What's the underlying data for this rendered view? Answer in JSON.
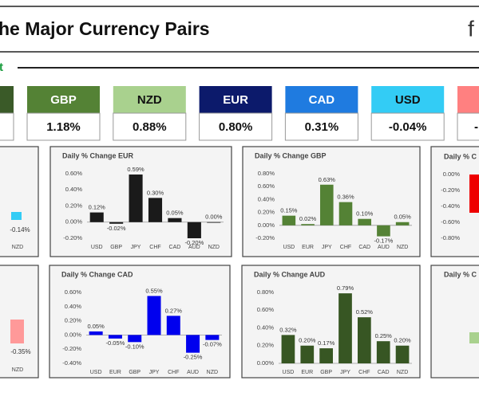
{
  "header": {
    "title": "he Major Currency Pairs",
    "logo": "f",
    "subtitle": "t"
  },
  "tiles": [
    {
      "currency": "GBP",
      "change": "1.18%",
      "color": "#548235"
    },
    {
      "currency": "NZD",
      "change": "0.88%",
      "color": "#a9d18e"
    },
    {
      "currency": "EUR",
      "change": "0.80%",
      "color": "#0c1a6b"
    },
    {
      "currency": "CAD",
      "change": "0.31%",
      "color": "#1f7be0"
    },
    {
      "currency": "USD",
      "change": "-0.04%",
      "color": "#33ccf5"
    }
  ],
  "partial_tile_value": "-",
  "chart_data": [
    {
      "type": "bar",
      "title": "Daily % Change EUR",
      "color": "#1a1a1a",
      "categories": [
        "USD",
        "GBP",
        "JPY",
        "CHF",
        "CAD",
        "AUD",
        "NZD"
      ],
      "values": [
        0.12,
        -0.02,
        0.59,
        0.3,
        0.05,
        -0.2,
        0.0
      ],
      "value_labels": [
        "0.12%",
        "-0.02%",
        "0.59%",
        "0.30%",
        "0.05%",
        "-0.20%",
        "0.00%"
      ],
      "ylim": [
        -0.2,
        0.6
      ],
      "yticks": [
        {
          "value": -0.2,
          "label": "-0.20%"
        },
        {
          "value": 0,
          "label": "0.00%"
        },
        {
          "value": 0.2,
          "label": "0.20%"
        },
        {
          "value": 0.4,
          "label": "0.40%"
        },
        {
          "value": 0.6,
          "label": "0.60%"
        }
      ]
    },
    {
      "type": "bar",
      "title": "Daily % Change GBP",
      "color": "#548235",
      "categories": [
        "USD",
        "EUR",
        "JPY",
        "CHF",
        "CAD",
        "AUD",
        "NZD"
      ],
      "values": [
        0.15,
        0.02,
        0.63,
        0.36,
        0.1,
        -0.17,
        0.05
      ],
      "value_labels": [
        "0.15%",
        "0.02%",
        "0.63%",
        "0.36%",
        "0.10%",
        "-0.17%",
        "0.05%"
      ],
      "ylim": [
        -0.2,
        0.8
      ],
      "yticks": [
        {
          "value": -0.2,
          "label": "-0.20%"
        },
        {
          "value": 0,
          "label": "0.00%"
        },
        {
          "value": 0.2,
          "label": "0.20%"
        },
        {
          "value": 0.4,
          "label": "0.40%"
        },
        {
          "value": 0.6,
          "label": "0.60%"
        },
        {
          "value": 0.8,
          "label": "0.80%"
        }
      ]
    },
    {
      "type": "bar",
      "title": "Daily % Change CAD",
      "color": "#0000ee",
      "categories": [
        "USD",
        "EUR",
        "GBP",
        "JPY",
        "CHF",
        "AUD",
        "NZD"
      ],
      "values": [
        0.05,
        -0.05,
        -0.1,
        0.55,
        0.27,
        -0.25,
        -0.07
      ],
      "value_labels": [
        "0.05%",
        "-0.05%",
        "-0.10%",
        "0.55%",
        "0.27%",
        "-0.25%",
        "-0.07%"
      ],
      "ylim": [
        -0.4,
        0.6
      ],
      "yticks": [
        {
          "value": -0.4,
          "label": "-0.40%"
        },
        {
          "value": -0.2,
          "label": "-0.20%"
        },
        {
          "value": 0,
          "label": "0.00%"
        },
        {
          "value": 0.2,
          "label": "0.20%"
        },
        {
          "value": 0.4,
          "label": "0.40%"
        },
        {
          "value": 0.6,
          "label": "0.60%"
        }
      ]
    },
    {
      "type": "bar",
      "title": "Daily % Change AUD",
      "color": "#375623",
      "categories": [
        "USD",
        "EUR",
        "GBP",
        "JPY",
        "CHF",
        "CAD",
        "NZD"
      ],
      "values": [
        0.32,
        0.2,
        0.17,
        0.79,
        0.52,
        0.25,
        0.2
      ],
      "value_labels": [
        "0.32%",
        "0.20%",
        "0.17%",
        "0.79%",
        "0.52%",
        "0.25%",
        "0.20%"
      ],
      "ylim": [
        0,
        0.8
      ],
      "yticks": [
        {
          "value": 0,
          "label": "0.00%"
        },
        {
          "value": 0.2,
          "label": "0.20%"
        },
        {
          "value": 0.4,
          "label": "0.40%"
        },
        {
          "value": 0.6,
          "label": "0.60%"
        },
        {
          "value": 0.8,
          "label": "0.80%"
        }
      ]
    }
  ],
  "partial_charts": {
    "top_left": {
      "value_label": "-0.14%",
      "category": "NZD"
    },
    "bottom_left": {
      "value_label": "-0.35%",
      "category": "NZD"
    },
    "top_right": {
      "title": "Daily % C",
      "yticks": [
        "0.00%",
        "-0.20%",
        "-0.40%",
        "-0.60%",
        "-0.80%"
      ]
    },
    "bottom_right": {
      "title": "Daily % C"
    }
  }
}
